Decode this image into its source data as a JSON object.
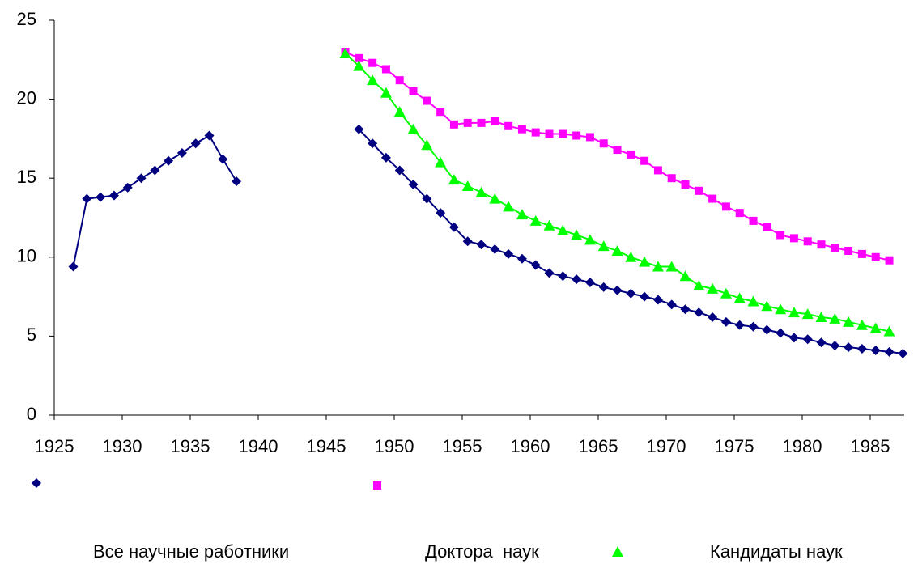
{
  "chart_data": {
    "type": "line",
    "x": [
      1926.4,
      1927.4,
      1928.4,
      1929.4,
      1930.4,
      1931.4,
      1932.4,
      1933.4,
      1934.4,
      1935.4,
      1936.4,
      1937.4,
      1938.4,
      1939.4,
      1940.4,
      1941.4,
      1942.4,
      1943.4,
      1944.4,
      1945.4,
      1946.4,
      1947.4,
      1948.4,
      1949.4,
      1950.4,
      1951.4,
      1952.4,
      1953.4,
      1954.4,
      1955.4,
      1956.4,
      1957.4,
      1958.4,
      1959.4,
      1960.4,
      1961.4,
      1962.4,
      1963.4,
      1964.4,
      1965.4,
      1966.4,
      1967.4,
      1968.4,
      1969.4,
      1970.4,
      1971.4,
      1972.4,
      1973.4,
      1974.4,
      1975.4,
      1976.4,
      1977.4,
      1978.4,
      1979.4,
      1980.4,
      1981.4,
      1982.4,
      1983.4,
      1984.4,
      1985.4,
      1986.4,
      1987.4
    ],
    "series": [
      {
        "name": "Все научные работники",
        "color": "#000080",
        "marker": "diamond",
        "values": [
          9.4,
          13.7,
          13.8,
          13.9,
          14.4,
          15.0,
          15.5,
          16.1,
          16.6,
          17.2,
          17.7,
          16.2,
          14.8,
          null,
          null,
          null,
          null,
          null,
          null,
          null,
          null,
          18.1,
          17.2,
          16.3,
          15.5,
          14.6,
          13.7,
          12.8,
          11.9,
          11.0,
          10.8,
          10.5,
          10.2,
          9.9,
          9.5,
          9.0,
          8.8,
          8.6,
          8.4,
          8.1,
          7.9,
          7.7,
          7.5,
          7.3,
          7.0,
          6.7,
          6.5,
          6.2,
          5.9,
          5.7,
          5.6,
          5.4,
          5.2,
          4.9,
          4.8,
          4.6,
          4.4,
          4.3,
          4.2,
          4.1,
          4.0,
          3.9
        ]
      },
      {
        "name": "Доктора  наук",
        "color": "#ff00ff",
        "marker": "square",
        "values": [
          null,
          null,
          null,
          null,
          null,
          null,
          null,
          null,
          null,
          null,
          null,
          null,
          null,
          null,
          null,
          null,
          null,
          null,
          null,
          null,
          23.0,
          22.6,
          22.3,
          21.9,
          21.2,
          20.5,
          19.9,
          19.2,
          18.4,
          18.5,
          18.5,
          18.6,
          18.3,
          18.1,
          17.9,
          17.8,
          17.8,
          17.7,
          17.6,
          17.2,
          16.8,
          16.5,
          16.1,
          15.5,
          15.0,
          14.6,
          14.2,
          13.7,
          13.2,
          12.8,
          12.3,
          11.9,
          11.4,
          11.2,
          11.0,
          10.8,
          10.6,
          10.4,
          10.2,
          10.0,
          9.8,
          null
        ]
      },
      {
        "name": "Кандидаты наук",
        "color": "#00ff00",
        "marker": "triangle",
        "values": [
          null,
          null,
          null,
          null,
          null,
          null,
          null,
          null,
          null,
          null,
          null,
          null,
          null,
          null,
          null,
          null,
          null,
          null,
          null,
          null,
          22.9,
          22.1,
          21.2,
          20.4,
          19.2,
          18.1,
          17.1,
          16.0,
          14.9,
          14.5,
          14.1,
          13.7,
          13.2,
          12.7,
          12.3,
          12.0,
          11.7,
          11.4,
          11.1,
          10.7,
          10.4,
          10.0,
          9.7,
          9.4,
          9.4,
          8.8,
          8.2,
          8.0,
          7.7,
          7.4,
          7.2,
          6.9,
          6.7,
          6.5,
          6.4,
          6.2,
          6.1,
          5.9,
          5.7,
          5.5,
          5.3,
          null
        ]
      }
    ],
    "xlim": [
      1925,
      1987.5
    ],
    "xticks": [
      1925,
      1930,
      1935,
      1940,
      1945,
      1950,
      1955,
      1960,
      1965,
      1970,
      1975,
      1980,
      1985
    ],
    "ylim": [
      0,
      25
    ],
    "yticks": [
      0,
      5,
      10,
      15,
      20,
      25
    ],
    "grid": false
  }
}
